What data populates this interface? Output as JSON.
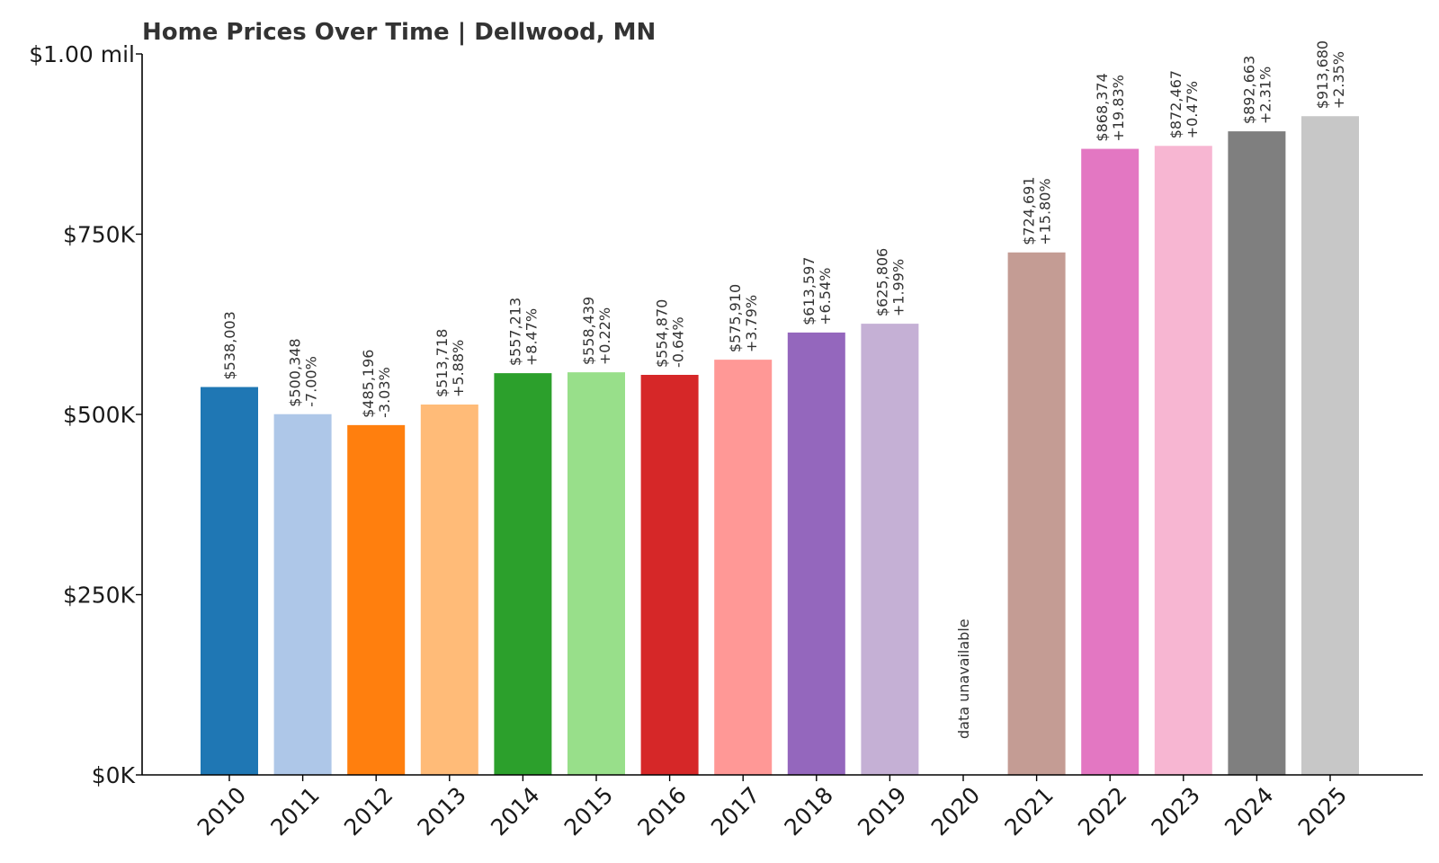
{
  "chart_data": {
    "type": "bar",
    "title": "Home Prices Over Time | Dellwood, MN",
    "xlabel": "",
    "ylabel": "",
    "ylim": [
      0,
      1000000
    ],
    "grid": false,
    "legend": "none",
    "y_ticks": [
      {
        "value": 0,
        "label": "$0K"
      },
      {
        "value": 250000,
        "label": "$250K"
      },
      {
        "value": 500000,
        "label": "$500K"
      },
      {
        "value": 750000,
        "label": "$750K"
      },
      {
        "value": 1000000,
        "label": "$1.00 mil"
      }
    ],
    "categories": [
      "2010",
      "2011",
      "2012",
      "2013",
      "2014",
      "2015",
      "2016",
      "2017",
      "2018",
      "2019",
      "2020",
      "2021",
      "2022",
      "2023",
      "2024",
      "2025"
    ],
    "values": [
      538003,
      500348,
      485196,
      513718,
      557213,
      558439,
      554870,
      575910,
      613597,
      625806,
      null,
      724691,
      868374,
      872467,
      892663,
      913680
    ],
    "value_labels": [
      "$538,003",
      "$500,348",
      "$485,196",
      "$513,718",
      "$557,213",
      "$558,439",
      "$554,870",
      "$575,910",
      "$613,597",
      "$625,806",
      "",
      "$724,691",
      "$868,374",
      "$872,467",
      "$892,663",
      "$913,680"
    ],
    "change_labels": [
      "",
      "-7.00%",
      "-3.03%",
      "+5.88%",
      "+8.47%",
      "+0.22%",
      "-0.64%",
      "+3.79%",
      "+6.54%",
      "+1.99%",
      "",
      "+15.80%",
      "+19.83%",
      "+0.47%",
      "+2.31%",
      "+2.35%"
    ],
    "missing_label": "data unavailable",
    "colors": [
      "#1f77b4",
      "#aec7e8",
      "#ff7f0e",
      "#ffbb78",
      "#2ca02c",
      "#98df8a",
      "#d62728",
      "#ff9896",
      "#9467bd",
      "#c5b0d5",
      "#8c564b",
      "#c49c94",
      "#e377c2",
      "#f7b6d2",
      "#7f7f7f",
      "#c7c7c7"
    ]
  }
}
